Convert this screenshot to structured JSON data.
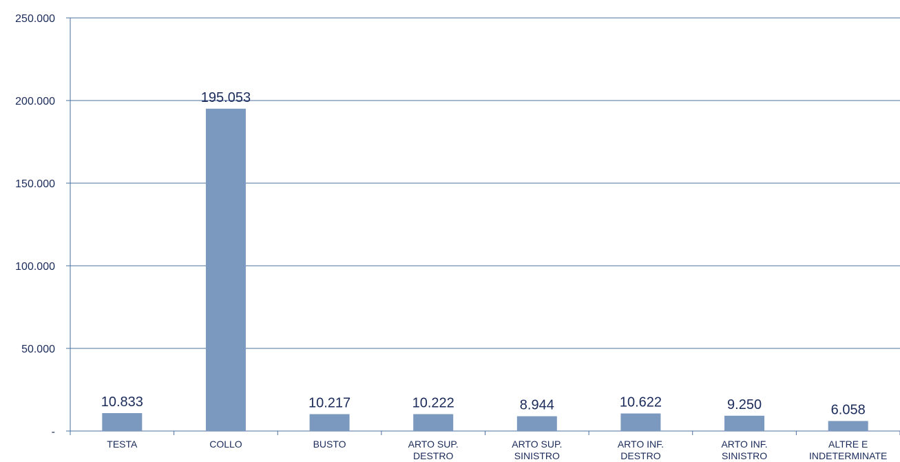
{
  "chart_data": {
    "type": "bar",
    "categories": [
      [
        "TESTA"
      ],
      [
        "COLLO"
      ],
      [
        "BUSTO"
      ],
      [
        "ARTO SUP.",
        "DESTRO"
      ],
      [
        "ARTO SUP.",
        "SINISTRO"
      ],
      [
        "ARTO INF.",
        "DESTRO"
      ],
      [
        "ARTO INF.",
        "SINISTRO"
      ],
      [
        "ALTRE E",
        "INDETERMINATE"
      ]
    ],
    "values": [
      10833,
      195053,
      10217,
      10222,
      8944,
      10622,
      9250,
      6058
    ],
    "value_labels": [
      "10.833",
      "195.053",
      "10.217",
      "10.222",
      "8.944",
      "10.622",
      "9.250",
      "6.058"
    ],
    "yticks": [
      0,
      50000,
      100000,
      150000,
      200000,
      250000
    ],
    "ytick_labels": [
      "-",
      "50.000",
      "100.000",
      "150.000",
      "200.000",
      "250.000"
    ],
    "ylim": [
      0,
      250000
    ],
    "grid": true,
    "colors": {
      "bar": "#7b98bf",
      "grid": "#4a6f9c",
      "text": "#1a2a5a"
    }
  }
}
